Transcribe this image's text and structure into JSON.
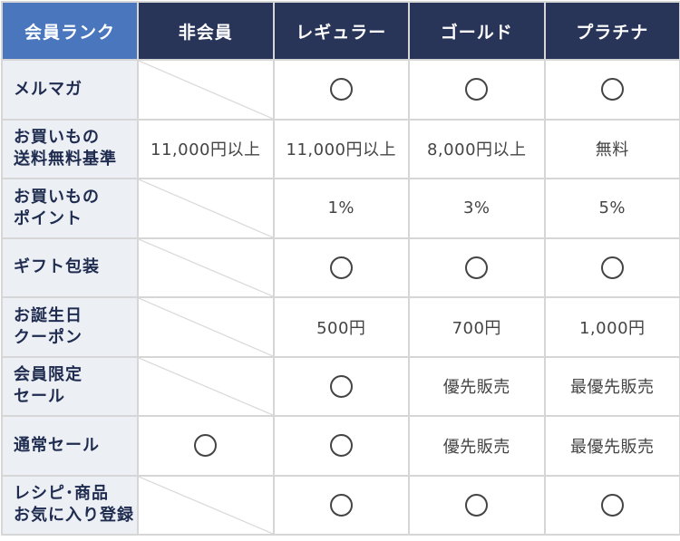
{
  "header": {
    "corner": "会員ランク",
    "columns": [
      "非会員",
      "レギュラー",
      "ゴールド",
      "プラチナ"
    ]
  },
  "rows": [
    {
      "label": "メルマガ",
      "cells": [
        "",
        "○",
        "○",
        "○"
      ]
    },
    {
      "label": "お買いもの\n送料無料基準",
      "cells": [
        "11,000円以上",
        "11,000円以上",
        "8,000円以上",
        "無料"
      ]
    },
    {
      "label": "お買いもの\nポイント",
      "cells": [
        "",
        "1%",
        "3%",
        "5%"
      ]
    },
    {
      "label": "ギフト包装",
      "cells": [
        "",
        "○",
        "○",
        "○"
      ]
    },
    {
      "label": "お誕生日\nクーポン",
      "cells": [
        "",
        "500円",
        "700円",
        "1,000円"
      ]
    },
    {
      "label": "会員限定\nセール",
      "cells": [
        "",
        "○",
        "優先販売",
        "最優先販売"
      ]
    },
    {
      "label": "通常セール",
      "cells": [
        "○",
        "○",
        "優先販売",
        "最優先販売"
      ]
    },
    {
      "label": "レシピ･商品\nお気に入り登録",
      "cells": [
        "",
        "○",
        "○",
        "○"
      ]
    }
  ],
  "colors": {
    "header_bg": "#283559",
    "corner_bg": "#4a76bd",
    "label_bg": "#eceff4",
    "label_text": "#1f2c4f",
    "border": "#d6d6d6"
  },
  "icons": {
    "available_mark": "circle-icon",
    "not_applicable": "diagonal-slash"
  }
}
